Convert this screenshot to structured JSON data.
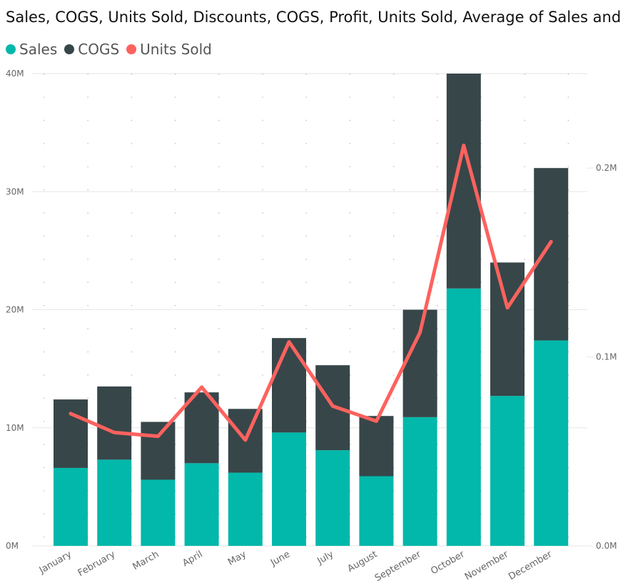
{
  "chart_data": {
    "type": "bar",
    "title": "Sales, COGS, Units Sold, Discounts, COGS, Profit, Units Sold, Average of  Sales and Avera...",
    "categories": [
      "January",
      "February",
      "March",
      "April",
      "May",
      "June",
      "July",
      "August",
      "September",
      "October",
      "November",
      "December"
    ],
    "series": [
      {
        "name": "Sales",
        "kind": "stacked-bar",
        "axis": "left",
        "color": "#01B8AA",
        "values": [
          6.6,
          7.3,
          5.6,
          7.0,
          6.2,
          9.6,
          8.1,
          5.9,
          10.9,
          21.8,
          12.7,
          17.4
        ]
      },
      {
        "name": "COGS",
        "kind": "stacked-bar",
        "axis": "left",
        "color": "#374649",
        "values": [
          5.8,
          6.2,
          4.9,
          6.0,
          5.4,
          8.0,
          7.2,
          5.1,
          9.1,
          18.2,
          11.3,
          14.6
        ]
      },
      {
        "name": "Units Sold",
        "kind": "line",
        "axis": "right",
        "color": "#FD625E",
        "values": [
          0.07,
          0.06,
          0.058,
          0.084,
          0.056,
          0.108,
          0.074,
          0.066,
          0.113,
          0.212,
          0.126,
          0.161
        ]
      }
    ],
    "y_left": {
      "ylim": [
        0,
        40
      ],
      "ticks": [
        0,
        10,
        20,
        30,
        40
      ],
      "tick_labels": [
        "0M",
        "10M",
        "20M",
        "30M",
        "40M"
      ]
    },
    "y_right": {
      "ylim": [
        0,
        0.25
      ],
      "ticks": [
        0.0,
        0.1,
        0.2
      ],
      "tick_labels": [
        "0.0M",
        "0.1M",
        "0.2M"
      ]
    },
    "grid": true,
    "legend": "top-left"
  }
}
